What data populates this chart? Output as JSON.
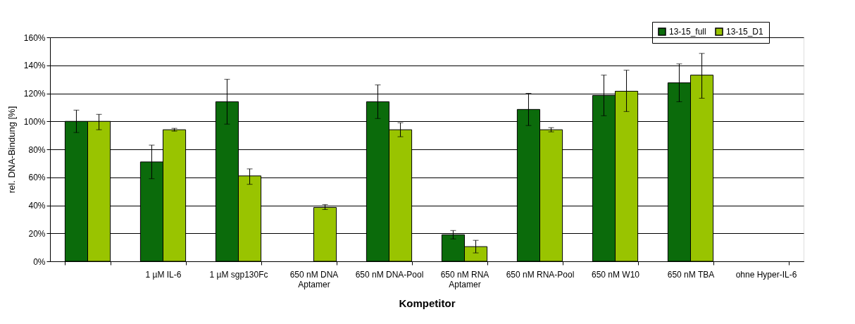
{
  "chart_data": {
    "type": "bar",
    "xlabel": "Kompetitor",
    "ylabel": "rel. DNA-Bindung [%]",
    "categories": [
      null,
      "1 µM IL-6",
      "1 µM sgp130Fc",
      "650 nM DNA\nAptamer",
      "650 nM DNA-Pool",
      "650 nM RNA\nAptamer",
      "650 nM RNA-Pool",
      "650 nM W10",
      "650 nM TBA",
      "ohne Hyper-IL-6"
    ],
    "series": [
      {
        "name": "13-15_full",
        "color": "#0b6b0b",
        "values": [
          100,
          71,
          114,
          0,
          114,
          19,
          108.5,
          118.5,
          127.5,
          null
        ],
        "errors": [
          [
            92,
            108
          ],
          [
            59,
            83
          ],
          [
            98,
            130
          ],
          null,
          [
            102,
            126
          ],
          [
            16,
            22
          ],
          [
            97,
            120
          ],
          [
            104,
            133
          ],
          [
            114,
            141
          ],
          null
        ]
      },
      {
        "name": "13-15_D1",
        "color": "#99c400",
        "values": [
          100,
          94,
          61,
          38.5,
          94,
          10.5,
          94,
          121.5,
          133,
          null
        ],
        "errors": [
          [
            94,
            105
          ],
          [
            93,
            95
          ],
          [
            55,
            66
          ],
          [
            37,
            40.5
          ],
          [
            89,
            99
          ],
          [
            6,
            15
          ],
          [
            92.5,
            95.5
          ],
          [
            107,
            136.5
          ],
          [
            116.5,
            148.5
          ],
          null
        ]
      }
    ],
    "ylim": [
      0,
      160
    ],
    "yticks": [
      {
        "value": 0,
        "label": "0%"
      },
      {
        "value": 20,
        "label": "20%"
      },
      {
        "value": 40,
        "label": "40%"
      },
      {
        "value": 60,
        "label": "60%"
      },
      {
        "value": 80,
        "label": "80%"
      },
      {
        "value": 100,
        "label": "100%"
      },
      {
        "value": 120,
        "label": "120%"
      },
      {
        "value": 140,
        "label": "140%"
      },
      {
        "value": 160,
        "label": "160%"
      }
    ],
    "grid": "y",
    "legend": "top right"
  }
}
